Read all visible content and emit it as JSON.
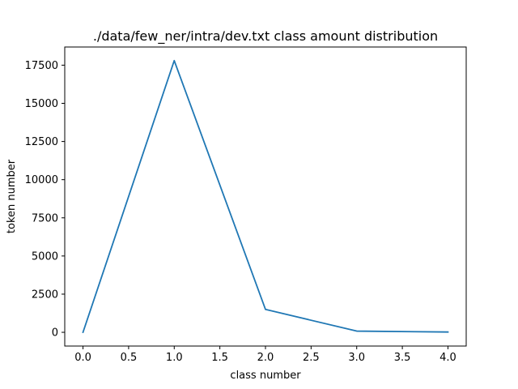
{
  "chart_data": {
    "type": "line",
    "title": "./data/few_ner/intra/dev.txt class amount distribution",
    "xlabel": "class number",
    "ylabel": "token number",
    "x": [
      0,
      1,
      2,
      3,
      4
    ],
    "series": [
      {
        "values": [
          0,
          17800,
          1500,
          80,
          20
        ],
        "color": "#1f77b4"
      }
    ],
    "xlim": [
      -0.2,
      4.2
    ],
    "ylim": [
      -900,
      18690
    ],
    "xticks": [
      0.0,
      0.5,
      1.0,
      1.5,
      2.0,
      2.5,
      3.0,
      3.5,
      4.0
    ],
    "xtick_labels": [
      "0.0",
      "0.5",
      "1.0",
      "1.5",
      "2.0",
      "2.5",
      "3.0",
      "3.5",
      "4.0"
    ],
    "yticks": [
      0,
      2500,
      5000,
      7500,
      10000,
      12500,
      15000,
      17500
    ],
    "ytick_labels": [
      "0",
      "2500",
      "5000",
      "7500",
      "10000",
      "12500",
      "15000",
      "17500"
    ],
    "grid": false,
    "legend": "none"
  }
}
